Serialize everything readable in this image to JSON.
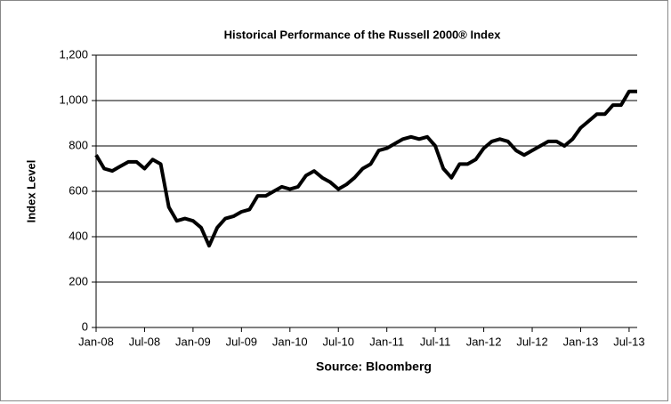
{
  "chart_data": {
    "type": "line",
    "title": "Historical Performance of the Russell 2000® Index",
    "xlabel": "Source: Bloomberg",
    "ylabel": "Index Level",
    "x": [
      "2008-01",
      "2008-02",
      "2008-03",
      "2008-04",
      "2008-05",
      "2008-06",
      "2008-07",
      "2008-08",
      "2008-09",
      "2008-10",
      "2008-11",
      "2008-12",
      "2009-01",
      "2009-02",
      "2009-03",
      "2009-04",
      "2009-05",
      "2009-06",
      "2009-07",
      "2009-08",
      "2009-09",
      "2009-10",
      "2009-11",
      "2009-12",
      "2010-01",
      "2010-02",
      "2010-03",
      "2010-04",
      "2010-05",
      "2010-06",
      "2010-07",
      "2010-08",
      "2010-09",
      "2010-10",
      "2010-11",
      "2010-12",
      "2011-01",
      "2011-02",
      "2011-03",
      "2011-04",
      "2011-05",
      "2011-06",
      "2011-07",
      "2011-08",
      "2011-09",
      "2011-10",
      "2011-11",
      "2011-12",
      "2012-01",
      "2012-02",
      "2012-03",
      "2012-04",
      "2012-05",
      "2012-06",
      "2012-07",
      "2012-08",
      "2012-09",
      "2012-10",
      "2012-11",
      "2012-12",
      "2013-01",
      "2013-02",
      "2013-03",
      "2013-04",
      "2013-05",
      "2013-06",
      "2013-07",
      "2013-08"
    ],
    "series": [
      {
        "name": "Russell 2000",
        "color": "#000000",
        "values": [
          760,
          700,
          690,
          710,
          730,
          730,
          700,
          740,
          720,
          530,
          470,
          480,
          470,
          440,
          360,
          440,
          480,
          490,
          510,
          520,
          580,
          580,
          600,
          620,
          610,
          620,
          670,
          690,
          660,
          640,
          610,
          630,
          660,
          700,
          720,
          780,
          790,
          810,
          830,
          840,
          830,
          840,
          800,
          700,
          660,
          720,
          720,
          740,
          790,
          820,
          830,
          820,
          780,
          760,
          780,
          800,
          820,
          820,
          800,
          830,
          880,
          910,
          940,
          940,
          980,
          980,
          1040,
          1040
        ]
      }
    ],
    "xlim": [
      "2008-01",
      "2013-08"
    ],
    "xticks": [
      {
        "value": "2008-01",
        "label": "Jan-08"
      },
      {
        "value": "2008-07",
        "label": "Jul-08"
      },
      {
        "value": "2009-01",
        "label": "Jan-09"
      },
      {
        "value": "2009-07",
        "label": "Jul-09"
      },
      {
        "value": "2010-01",
        "label": "Jan-10"
      },
      {
        "value": "2010-07",
        "label": "Jul-10"
      },
      {
        "value": "2011-01",
        "label": "Jan-11"
      },
      {
        "value": "2011-07",
        "label": "Jul-11"
      },
      {
        "value": "2012-01",
        "label": "Jan-12"
      },
      {
        "value": "2012-07",
        "label": "Jul-12"
      },
      {
        "value": "2013-01",
        "label": "Jan-13"
      },
      {
        "value": "2013-07",
        "label": "Jul-13"
      }
    ],
    "ylim": [
      0,
      1200
    ],
    "yticks": [
      0,
      200,
      400,
      600,
      800,
      {
        "value": 1000,
        "label": "1,000"
      },
      {
        "value": 1200,
        "label": "1,200"
      }
    ],
    "grid": true
  }
}
